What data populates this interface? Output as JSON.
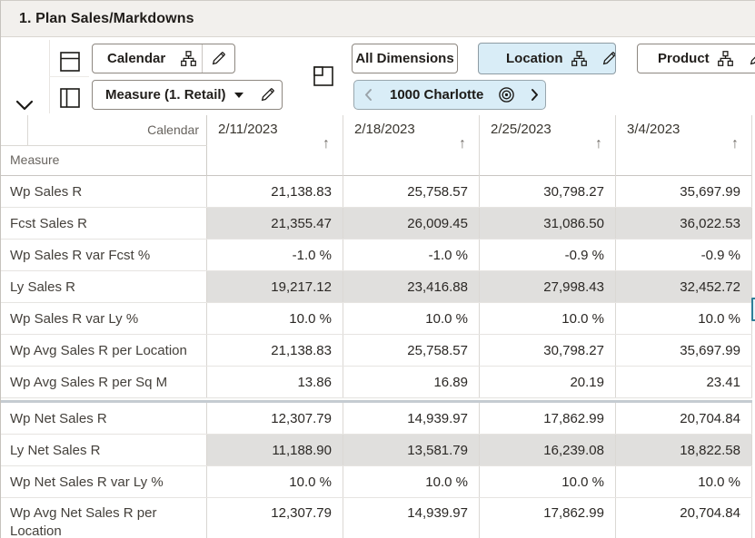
{
  "window": {
    "title": "1. Plan Sales/Markdowns"
  },
  "toolbar": {
    "calendar_axis_label": "Calendar",
    "measure_axis_label": "Measure (1. Retail)",
    "all_dimensions_label": "All Dimensions",
    "location_label": "Location",
    "product_label": "Product",
    "nav_current": "1000 Charlotte",
    "icons": {
      "collapse": "chevron-down",
      "row_axis": "table-rows",
      "column_axis": "table-columns",
      "page_layout": "tile",
      "hierarchy": "org-chart",
      "edit": "pencil",
      "scope": "target",
      "prev": "chevron-left",
      "next": "chevron-right"
    }
  },
  "grid": {
    "column_axis_label": "Calendar",
    "row_axis_label": "Measure",
    "sort_icon": "↑",
    "columns": [
      "2/11/2023",
      "2/18/2023",
      "2/25/2023",
      "3/4/2023"
    ],
    "rows": [
      {
        "label": "Wp Sales R",
        "shaded": false,
        "values": [
          "21,138.83",
          "25,758.57",
          "30,798.27",
          "35,697.99"
        ]
      },
      {
        "label": "Fcst Sales R",
        "shaded": true,
        "values": [
          "21,355.47",
          "26,009.45",
          "31,086.50",
          "36,022.53"
        ]
      },
      {
        "label": "Wp Sales R var Fcst %",
        "shaded": false,
        "values": [
          "-1.0 %",
          "-1.0 %",
          "-0.9 %",
          "-0.9 %"
        ]
      },
      {
        "label": "Ly Sales R",
        "shaded": true,
        "values": [
          "19,217.12",
          "23,416.88",
          "27,998.43",
          "32,452.72"
        ]
      },
      {
        "label": "Wp Sales R var Ly %",
        "shaded": false,
        "values": [
          "10.0 %",
          "10.0 %",
          "10.0 %",
          "10.0 %"
        ]
      },
      {
        "label": "Wp Avg Sales R per Location",
        "shaded": false,
        "values": [
          "21,138.83",
          "25,758.57",
          "30,798.27",
          "35,697.99"
        ]
      },
      {
        "label": "Wp Avg Sales R per Sq M",
        "shaded": false,
        "group_end": true,
        "values": [
          "13.86",
          "16.89",
          "20.19",
          "23.41"
        ]
      },
      {
        "label": "Wp Net Sales R",
        "shaded": false,
        "values": [
          "12,307.79",
          "14,939.97",
          "17,862.99",
          "20,704.84"
        ]
      },
      {
        "label": "Ly Net Sales R",
        "shaded": true,
        "values": [
          "11,188.90",
          "13,581.79",
          "16,239.08",
          "18,822.58"
        ]
      },
      {
        "label": "Wp Net Sales R var Ly %",
        "shaded": false,
        "values": [
          "10.0 %",
          "10.0 %",
          "10.0 %",
          "10.0 %"
        ]
      },
      {
        "label": "Wp Avg Net Sales R per Location",
        "shaded": false,
        "tall": true,
        "values": [
          "12,307.79",
          "14,939.97",
          "17,862.99",
          "20,704.84"
        ]
      }
    ]
  },
  "colors": {
    "accent_blue_bg": "#d9edf7",
    "shaded_cell": "#e0dfdd",
    "titlebar_bg": "#f2f0ed",
    "scroll_thumb_border": "#2e7e97"
  }
}
